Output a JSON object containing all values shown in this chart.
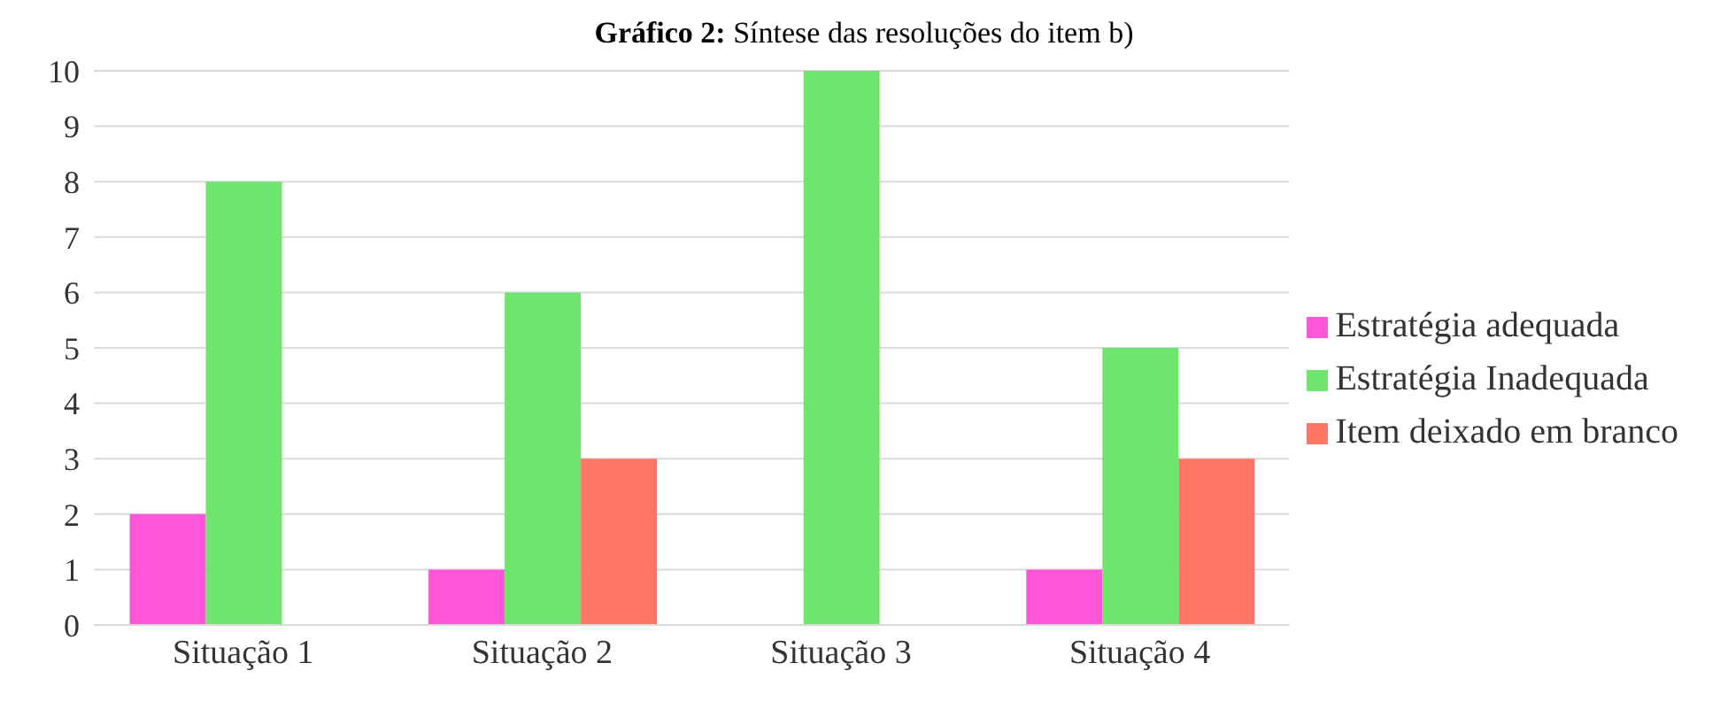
{
  "chart_data": {
    "type": "bar",
    "title": "Gráfico 2: Síntese das resoluções do item b)",
    "categories": [
      "Situação 1",
      "Situação 2",
      "Situação 3",
      "Situação 4"
    ],
    "series": [
      {
        "name": "Estratégia adequada",
        "color": "#ff55d8",
        "values": [
          2,
          1,
          0,
          1
        ]
      },
      {
        "name": "Estratégia Inadequada",
        "color": "#6ee66e",
        "values": [
          8,
          6,
          10,
          5
        ]
      },
      {
        "name": "Item deixado em branco",
        "color": "#ff7566",
        "values": [
          0,
          3,
          0,
          3
        ]
      }
    ],
    "ylim": [
      0,
      10
    ],
    "yticks": [
      0,
      1,
      2,
      3,
      4,
      5,
      6,
      7,
      8,
      9,
      10
    ],
    "grid": "y",
    "legend": "right"
  }
}
